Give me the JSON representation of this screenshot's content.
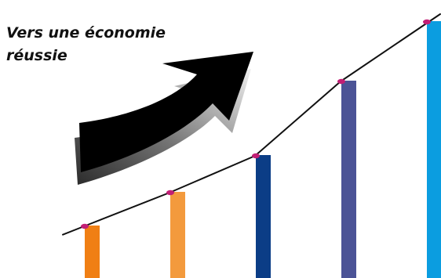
{
  "chart_data": {
    "type": "bar",
    "title": "Vers une économie réussie",
    "xlabel": "",
    "ylabel": "",
    "axes_visible": false,
    "grid": false,
    "legend": "none",
    "categories": [
      "",
      "",
      "",
      "",
      ""
    ],
    "values": [
      67,
      110,
      157,
      252,
      328
    ],
    "ylim": [
      0,
      340
    ],
    "bar_colors": [
      "#f07f14",
      "#f39a3d",
      "#0b3d86",
      "#4b5396",
      "#0b9de0"
    ],
    "trend_line": {
      "color": "#111111",
      "marker_color": "#c21f75",
      "values": [
        67,
        110,
        157,
        252,
        328
      ]
    },
    "arrow": {
      "icon": "upward-curved-arrow-icon",
      "fill_color": "#000000",
      "shadow_color": "#8d8d8d"
    }
  }
}
